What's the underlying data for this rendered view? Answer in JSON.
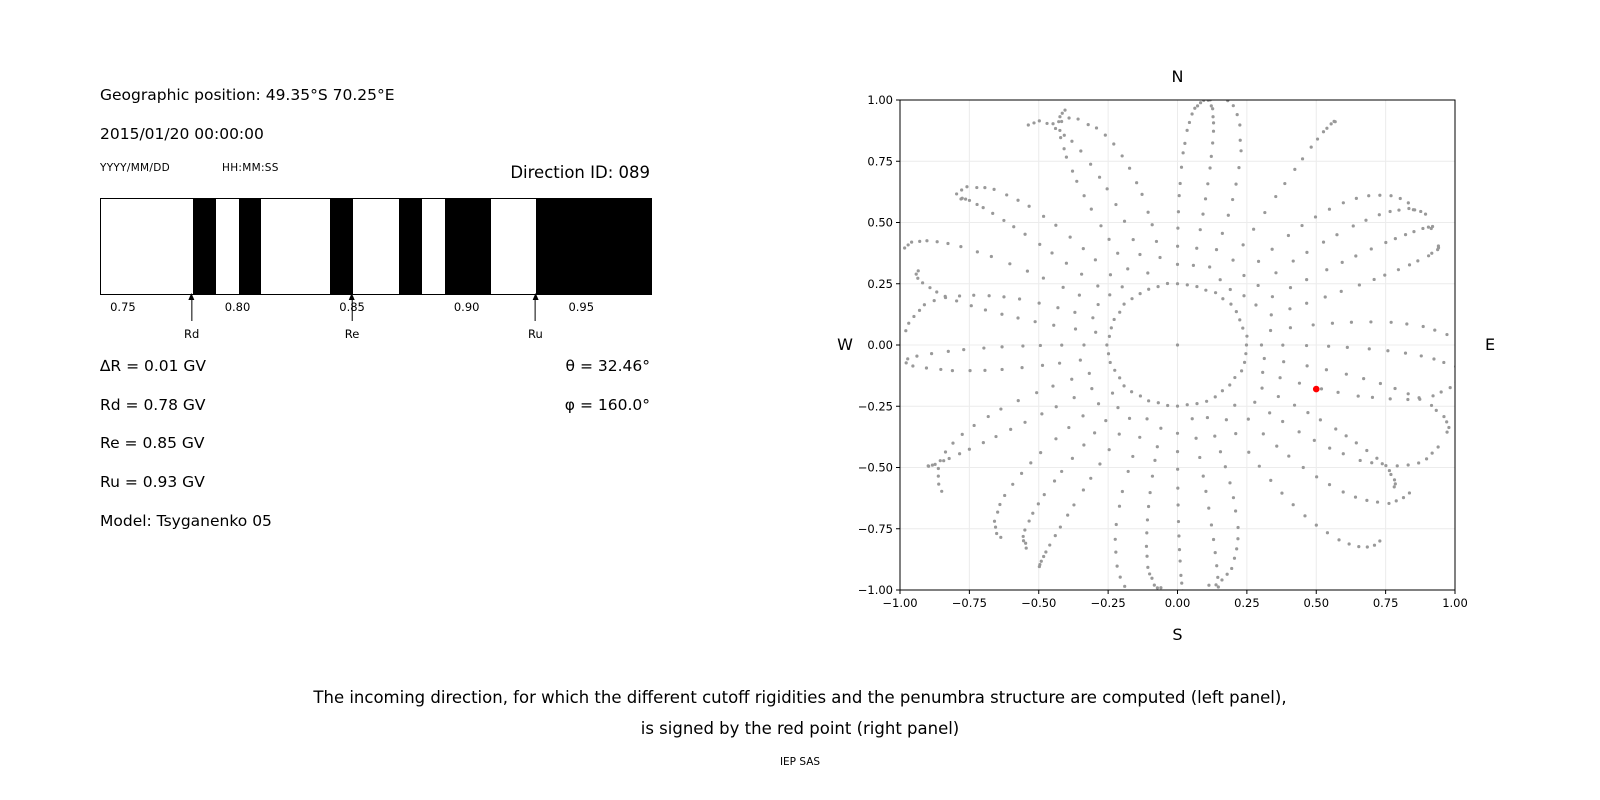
{
  "left_panel": {
    "geo_position": "Geographic position: 49.35°S 70.25°E",
    "datetime": "2015/01/20 00:00:00",
    "date_format_label": "YYYY/MM/DD",
    "time_format_label": "HH:MM:SS",
    "direction_id_label": "Direction ID: 089",
    "delta_r": "∆R = 0.01 GV",
    "rd": "Rd = 0.78 GV",
    "re": "Re = 0.85 GV",
    "ru": "Ru = 0.93 GV",
    "model": "Model: Tsyganenko 05",
    "theta": "θ = 32.46°",
    "phi": "φ = 160.0°"
  },
  "caption": {
    "line1": "The incoming direction, for which the different cutoff rigidities and the penumbra structure are computed (left panel),",
    "line2": "is signed by the red point (right panel)",
    "credit": "IEP SAS"
  },
  "chart_data": [
    {
      "type": "bar",
      "name": "penumbra-structure",
      "description": "Penumbra barcode: black bands mark forbidden rigidity intervals in GV",
      "x_range": [
        0.74,
        0.98
      ],
      "x_ticks": [
        0.75,
        0.8,
        0.85,
        0.9,
        0.95
      ],
      "black_segments": [
        [
          0.78,
          0.79
        ],
        [
          0.8,
          0.81
        ],
        [
          0.84,
          0.85
        ],
        [
          0.87,
          0.88
        ],
        [
          0.89,
          0.91
        ],
        [
          0.93,
          0.98
        ]
      ],
      "markers": [
        {
          "label": "Rd",
          "value": 0.78
        },
        {
          "label": "Re",
          "value": 0.85
        },
        {
          "label": "Ru",
          "value": 0.93
        }
      ],
      "bar_color": "#000000"
    },
    {
      "type": "scatter",
      "name": "incoming-direction-map",
      "xlim": [
        -1.0,
        1.0
      ],
      "ylim": [
        -1.0,
        1.0
      ],
      "x_ticks": [
        -1.0,
        -0.75,
        -0.5,
        -0.25,
        0.0,
        0.25,
        0.5,
        0.75,
        1.0
      ],
      "y_ticks": [
        1.0,
        0.75,
        0.5,
        0.25,
        0.0,
        -0.25,
        -0.5,
        -0.75,
        -1.0
      ],
      "compass_labels": {
        "top": "N",
        "bottom": "S",
        "left": "W",
        "right": "E"
      },
      "grid": true,
      "dot_color": "#999999",
      "pattern": {
        "spokes": 36,
        "points_per_spoke": 16,
        "spoke_r_min": 0.3,
        "spoke_r_max": 1.0,
        "inner_ring_radius": 0.25,
        "inner_ring_points": 44,
        "center_dot": true
      },
      "red_point": {
        "x": 0.5,
        "y": -0.18,
        "color": "#ff0000"
      }
    }
  ]
}
